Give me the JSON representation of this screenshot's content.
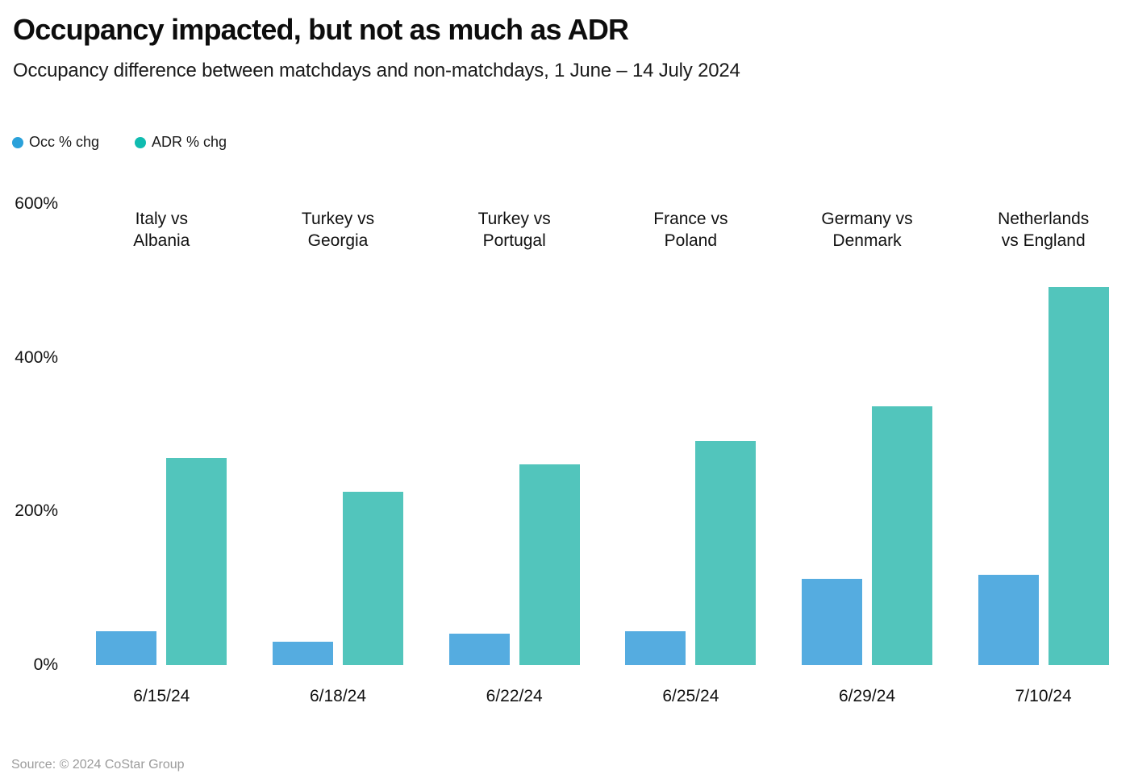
{
  "title": "Occupancy impacted, but not as much as ADR",
  "subtitle": "Occupancy difference between matchdays and non-matchdays, 1 June – 14 July 2024",
  "source": "Source: © 2024 CoStar Group",
  "legend": {
    "items": [
      {
        "label": "Occ % chg",
        "color": "#2AA1DA",
        "icon": "legend-dot-icon"
      },
      {
        "label": "ADR % chg",
        "color": "#10BCB0",
        "icon": "legend-dot-icon"
      }
    ]
  },
  "chart_data": {
    "type": "bar",
    "title": "Occupancy impacted, but not as much as ADR",
    "subtitle": "Occupancy difference between matchdays and non-matchdays, 1 June – 14 July 2024",
    "categories": [
      "6/15/24",
      "6/18/24",
      "6/22/24",
      "6/25/24",
      "6/29/24",
      "7/10/24"
    ],
    "matchup_labels": [
      [
        "Italy vs",
        "Albania"
      ],
      [
        "Turkey vs",
        "Georgia"
      ],
      [
        "Turkey vs",
        "Portugal"
      ],
      [
        "France vs",
        "Poland"
      ],
      [
        "Germany vs",
        "Denmark"
      ],
      [
        "Netherlands",
        "vs England"
      ]
    ],
    "series": [
      {
        "name": "Occ % chg",
        "color": "#55ACE0",
        "values": [
          44,
          30,
          41,
          44,
          112,
          118
        ]
      },
      {
        "name": "ADR % chg",
        "color": "#52C5BC",
        "values": [
          270,
          226,
          261,
          292,
          337,
          492
        ]
      }
    ],
    "unit": "%",
    "xlabel": "",
    "ylabel": "",
    "ylim": [
      0,
      600
    ],
    "y_ticks": [
      {
        "value": 0,
        "label": "0%"
      },
      {
        "value": 200,
        "label": "200%"
      },
      {
        "value": 400,
        "label": "400%"
      },
      {
        "value": 600,
        "label": "600%"
      }
    ],
    "grid": false,
    "legend_position": "top-left"
  }
}
